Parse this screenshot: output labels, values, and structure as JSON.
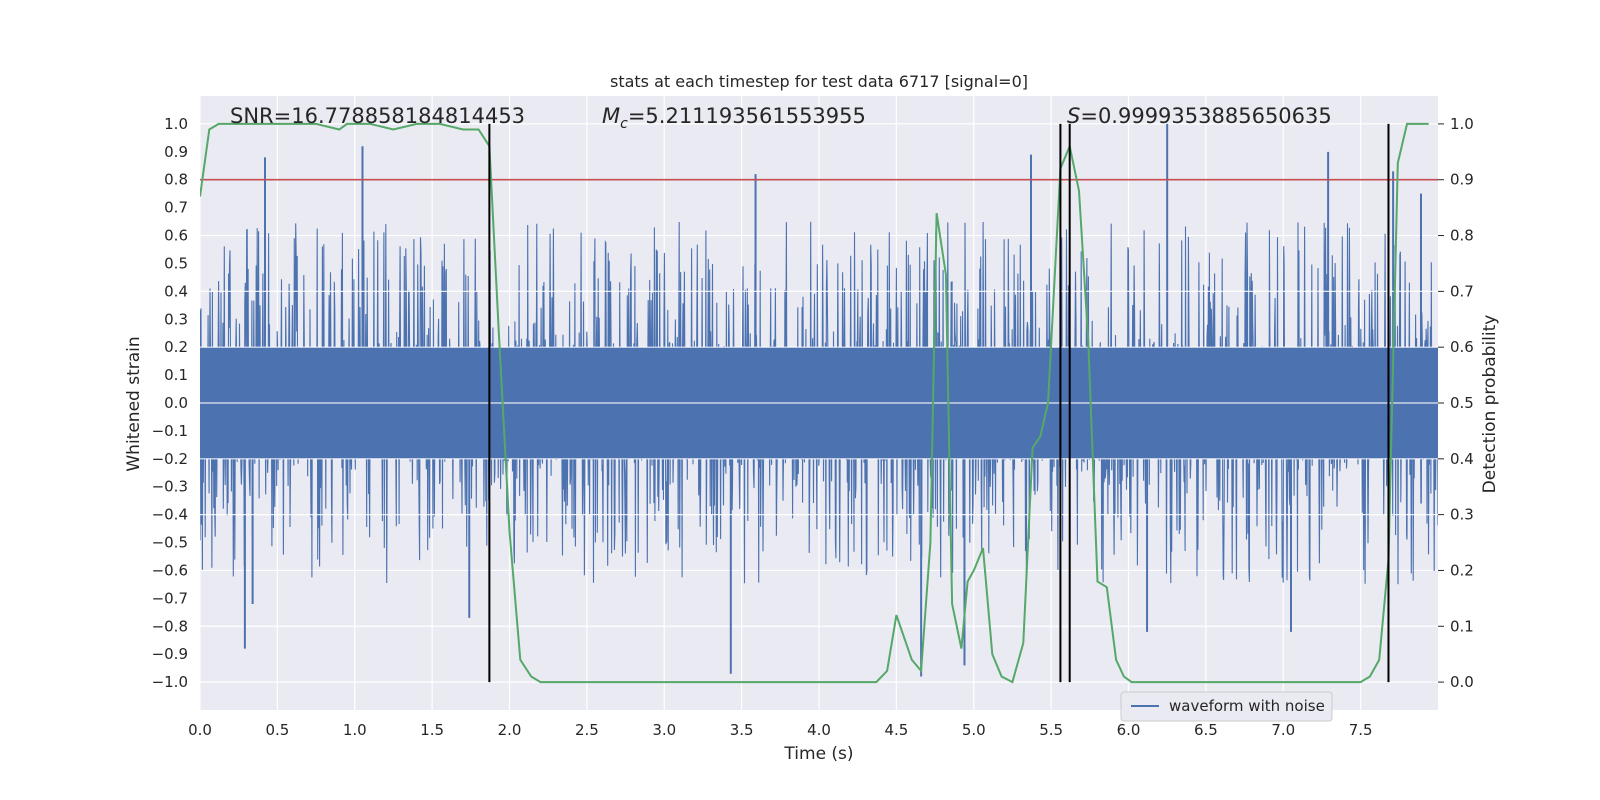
{
  "chart_data": {
    "type": "line",
    "title": "stats at each timestep for test data 6717 [signal=0]",
    "xlabel": "Time (s)",
    "ylabel": "Whitened strain",
    "y2label": "Detection probability",
    "xlim": [
      0.0,
      8.0
    ],
    "ylim": [
      -1.1,
      1.1
    ],
    "y2lim": [
      -0.05,
      1.05
    ],
    "xticks": [
      0.0,
      0.5,
      1.0,
      1.5,
      2.0,
      2.5,
      3.0,
      3.5,
      4.0,
      4.5,
      5.0,
      5.5,
      6.0,
      6.5,
      7.0,
      7.5
    ],
    "xtick_labels": [
      "0.0",
      "0.5",
      "1.0",
      "1.5",
      "2.0",
      "2.5",
      "3.0",
      "3.5",
      "4.0",
      "4.5",
      "5.0",
      "5.5",
      "6.0",
      "6.5",
      "7.0",
      "7.5"
    ],
    "yticks": [
      -1.0,
      -0.9,
      -0.8,
      -0.7,
      -0.6,
      -0.5,
      -0.4,
      -0.3,
      -0.2,
      -0.1,
      0.0,
      0.1,
      0.2,
      0.3,
      0.4,
      0.5,
      0.6,
      0.7,
      0.8,
      0.9,
      1.0
    ],
    "ytick_labels": [
      "−1.0",
      "−0.9",
      "−0.8",
      "−0.7",
      "−0.6",
      "−0.5",
      "−0.4",
      "−0.3",
      "−0.2",
      "−0.1",
      "0.0",
      "0.1",
      "0.2",
      "0.3",
      "0.4",
      "0.5",
      "0.6",
      "0.7",
      "0.8",
      "0.9",
      "1.0"
    ],
    "y2ticks": [
      0.0,
      0.1,
      0.2,
      0.3,
      0.4,
      0.5,
      0.6,
      0.7,
      0.8,
      0.9,
      1.0
    ],
    "y2tick_labels": [
      "0.0",
      "0.1",
      "0.2",
      "0.3",
      "0.4",
      "0.5",
      "0.6",
      "0.7",
      "0.8",
      "0.9",
      "1.0"
    ],
    "annotations": {
      "snr": "SNR=16.778858184814453",
      "mc_symbol": "M",
      "mc_sub": "c",
      "mc_value": "=5.211193561553955",
      "s_symbol": "S",
      "s_value": "=0.9999353885650635"
    },
    "legend": {
      "label": "waveform with noise",
      "position": "lower right"
    },
    "colors": {
      "background": "#eaeaf2",
      "grid": "#ffffff",
      "waveform": "#4c72b0",
      "probability": "#55a868",
      "threshold": "#c44e52",
      "markers": "#000000"
    },
    "threshold_y2": 0.9,
    "vertical_markers_x": [
      1.87,
      5.56,
      5.62,
      7.68
    ],
    "waveform": {
      "name": "waveform with noise",
      "x_range": [
        0.0,
        8.0
      ],
      "envelope_upper_typical": 0.45,
      "envelope_lower_typical": -0.45,
      "dense_core": [
        -0.2,
        0.2
      ],
      "spikes": [
        [
          0.42,
          0.88
        ],
        [
          1.05,
          0.92
        ],
        [
          0.29,
          -0.88
        ],
        [
          0.34,
          -0.72
        ],
        [
          3.43,
          -0.97
        ],
        [
          4.66,
          -0.98
        ],
        [
          4.94,
          -0.94
        ],
        [
          3.59,
          0.82
        ],
        [
          5.37,
          0.89
        ],
        [
          6.25,
          1.0
        ],
        [
          7.29,
          0.9
        ],
        [
          7.71,
          0.83
        ],
        [
          7.89,
          0.75
        ],
        [
          6.12,
          -0.82
        ],
        [
          7.05,
          -0.82
        ],
        [
          1.74,
          -0.77
        ]
      ]
    },
    "series": [
      {
        "name": "Detection probability",
        "axis": "right",
        "x": [
          0.0,
          0.06,
          0.12,
          0.25,
          0.5,
          0.75,
          0.9,
          0.95,
          1.0,
          1.1,
          1.25,
          1.4,
          1.55,
          1.7,
          1.8,
          1.87,
          1.93,
          2.0,
          2.07,
          2.14,
          2.2,
          2.35,
          2.5,
          2.6,
          2.67,
          2.75,
          2.85,
          3.0,
          3.2,
          3.5,
          3.8,
          4.0,
          4.2,
          4.37,
          4.44,
          4.5,
          4.6,
          4.66,
          4.72,
          4.76,
          4.82,
          4.86,
          4.92,
          4.96,
          5.0,
          5.06,
          5.12,
          5.18,
          5.25,
          5.32,
          5.38,
          5.43,
          5.48,
          5.56,
          5.62,
          5.68,
          5.74,
          5.8,
          5.86,
          5.92,
          5.97,
          6.02,
          6.1,
          6.3,
          6.5,
          6.75,
          7.0,
          7.2,
          7.4,
          7.45,
          7.5,
          7.56,
          7.62,
          7.68,
          7.74,
          7.8,
          7.86,
          7.94
        ],
        "y": [
          0.87,
          0.99,
          1.0,
          1.0,
          1.0,
          1.0,
          0.99,
          1.0,
          1.0,
          1.0,
          0.99,
          1.0,
          1.0,
          0.99,
          0.99,
          0.96,
          0.63,
          0.27,
          0.04,
          0.01,
          0.0,
          0.0,
          0.0,
          0.0,
          0.0,
          0.0,
          0.0,
          0.0,
          0.0,
          0.0,
          0.0,
          0.0,
          0.0,
          0.0,
          0.02,
          0.12,
          0.04,
          0.02,
          0.25,
          0.84,
          0.73,
          0.14,
          0.06,
          0.18,
          0.2,
          0.24,
          0.05,
          0.01,
          0.0,
          0.07,
          0.42,
          0.44,
          0.5,
          0.92,
          0.96,
          0.88,
          0.61,
          0.18,
          0.17,
          0.04,
          0.01,
          0.0,
          0.0,
          0.0,
          0.0,
          0.0,
          0.0,
          0.0,
          0.0,
          0.0,
          0.0,
          0.01,
          0.04,
          0.22,
          0.93,
          1.0,
          1.0,
          1.0
        ]
      }
    ]
  }
}
